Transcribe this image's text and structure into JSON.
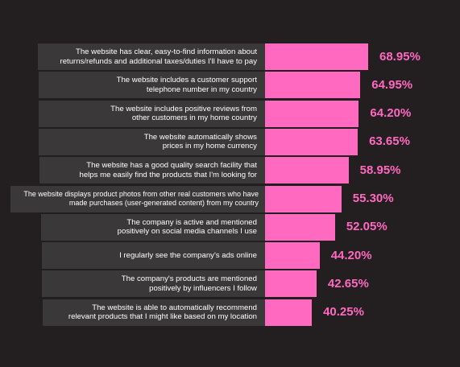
{
  "chart_data": {
    "type": "bar",
    "orientation": "horizontal",
    "title": "",
    "xlabel": "",
    "ylabel": "",
    "xlim": [
      0,
      100
    ],
    "grid": false,
    "categories": [
      "The website has clear, easy-to-find information about\nreturns/refunds and additional taxes/duties I'll have to pay",
      "The website includes a customer support\ntelephone number in my country",
      "The website includes positive reviews from\nother customers in my home country",
      "The website automatically shows\nprices in my home currency",
      "The website has a good quality search facility that\nhelps me easily find the products that I'm looking for",
      "The website displays product photos from other real customers who have\nmade purchases (user-generated content) from my country",
      "The company is active and mentioned\npositively on social media channels I use",
      "I regularly see the company's ads online",
      "The company's products are mentioned\npositively by influencers I follow",
      "The website is able to automatically recommend\nrelevant products that I might like based on my location"
    ],
    "values": [
      68.95,
      64.95,
      64.2,
      63.65,
      58.95,
      55.3,
      52.05,
      44.2,
      42.65,
      40.25
    ],
    "value_labels": [
      "68.95%",
      "64.95%",
      "64.20%",
      "63.65%",
      "58.95%",
      "55.30%",
      "52.05%",
      "44.20%",
      "42.65%",
      "40.25%"
    ],
    "colors": {
      "bar": "#ff69c0",
      "value_text": "#ff69c0",
      "label_box": "#3b383a",
      "label_text": "#ffffff",
      "background": "#231f20"
    }
  }
}
